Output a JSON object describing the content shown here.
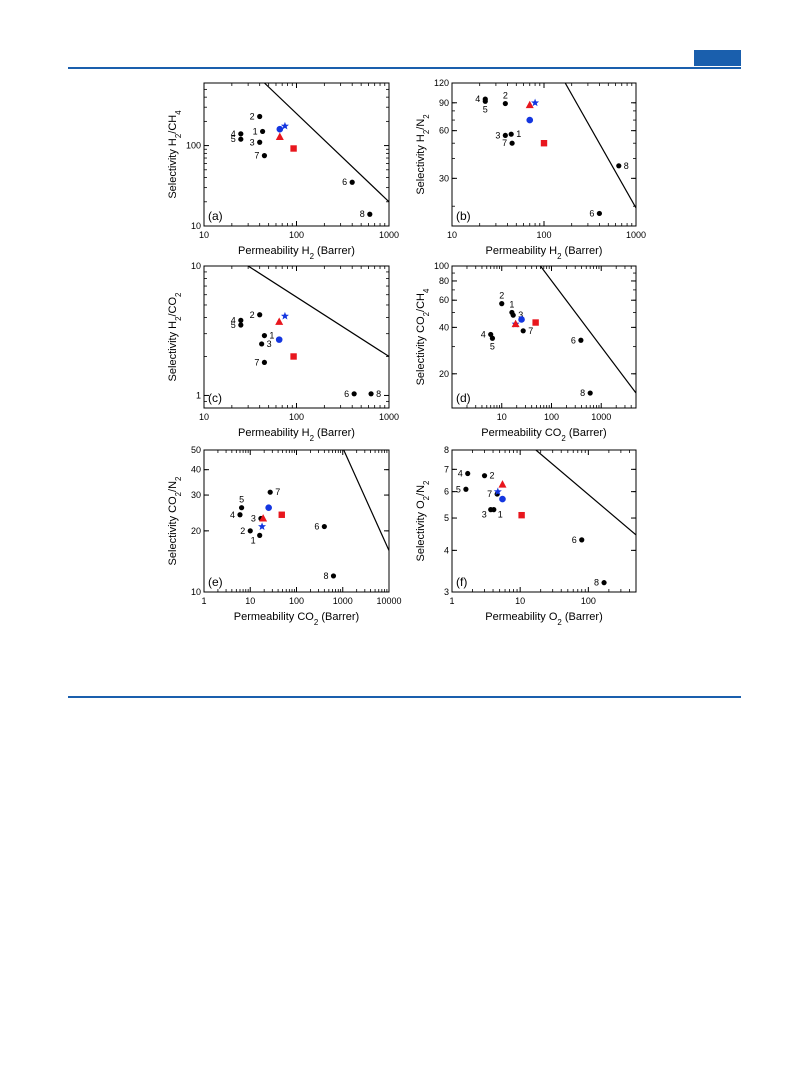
{
  "colors": {
    "page_accent": "#1a5fad",
    "red": "#e8161d",
    "blue": "#1436e0",
    "black": "#000000"
  },
  "chart_data": [
    {
      "type": "scatter",
      "panel_label": "(a)",
      "xlabel": "Permeability H₂ (Barrer)",
      "ylabel": "Selectivity H₂/CH₄",
      "xscale": "log",
      "yscale": "log",
      "xlim": [
        10,
        1000
      ],
      "ylim": [
        10,
        600
      ],
      "xticks": [
        {
          "v": 10,
          "label": "10"
        },
        {
          "v": 100,
          "label": "100"
        },
        {
          "v": 1000,
          "label": "1000"
        }
      ],
      "yticks": [
        {
          "v": 10,
          "label": "10"
        },
        {
          "v": 100,
          "label": "100"
        }
      ],
      "points": [
        {
          "label": "1",
          "x": 43,
          "y": 150,
          "color": "black",
          "marker": "circle",
          "label_pos": "left"
        },
        {
          "label": "2",
          "x": 40,
          "y": 230,
          "color": "black",
          "marker": "circle",
          "label_pos": "left"
        },
        {
          "label": "3",
          "x": 40,
          "y": 110,
          "color": "black",
          "marker": "circle",
          "label_pos": "left"
        },
        {
          "label": "4",
          "x": 25,
          "y": 140,
          "color": "black",
          "marker": "circle",
          "label_pos": "left"
        },
        {
          "label": "5",
          "x": 25,
          "y": 120,
          "color": "black",
          "marker": "circle",
          "label_pos": "left"
        },
        {
          "label": "6",
          "x": 400,
          "y": 35,
          "color": "black",
          "marker": "circle",
          "label_pos": "left"
        },
        {
          "label": "7",
          "x": 45,
          "y": 75,
          "color": "black",
          "marker": "circle",
          "label_pos": "left"
        },
        {
          "label": "8",
          "x": 620,
          "y": 14,
          "color": "black",
          "marker": "circle",
          "label_pos": "left"
        },
        {
          "label": "",
          "x": 66,
          "y": 160,
          "color": "blue",
          "marker": "circle",
          "label_pos": "none"
        },
        {
          "label": "",
          "x": 75,
          "y": 175,
          "color": "blue",
          "marker": "star",
          "label_pos": "none"
        },
        {
          "label": "",
          "x": 66,
          "y": 128,
          "color": "red",
          "marker": "triangle",
          "label_pos": "none"
        },
        {
          "label": "",
          "x": 93,
          "y": 92,
          "color": "red",
          "marker": "square",
          "label_pos": "none"
        }
      ],
      "upper_bound": [
        [
          45,
          600
        ],
        [
          1000,
          20
        ]
      ]
    },
    {
      "type": "scatter",
      "panel_label": "(b)",
      "xlabel": "Permeability H₂ (Barrer)",
      "ylabel": "Selectivity H₂/N₂",
      "xscale": "log",
      "yscale": "log",
      "xlim": [
        10,
        1000
      ],
      "ylim": [
        15,
        120
      ],
      "xticks": [
        {
          "v": 10,
          "label": "10"
        },
        {
          "v": 100,
          "label": "100"
        },
        {
          "v": 1000,
          "label": "1000"
        }
      ],
      "yticks": [
        {
          "v": 30,
          "label": "30"
        },
        {
          "v": 60,
          "label": "60"
        },
        {
          "v": 90,
          "label": "90"
        },
        {
          "v": 120,
          "label": "120"
        }
      ],
      "points": [
        {
          "label": "1",
          "x": 44,
          "y": 57,
          "color": "black",
          "marker": "circle",
          "label_pos": "right"
        },
        {
          "label": "2",
          "x": 38,
          "y": 89,
          "color": "black",
          "marker": "circle",
          "label_pos": "above"
        },
        {
          "label": "3",
          "x": 38,
          "y": 56,
          "color": "black",
          "marker": "circle",
          "label_pos": "left"
        },
        {
          "label": "4",
          "x": 23,
          "y": 95,
          "color": "black",
          "marker": "circle",
          "label_pos": "left"
        },
        {
          "label": "5",
          "x": 23,
          "y": 92,
          "color": "black",
          "marker": "circle",
          "label_pos": "below"
        },
        {
          "label": "6",
          "x": 400,
          "y": 18,
          "color": "black",
          "marker": "circle",
          "label_pos": "left"
        },
        {
          "label": "7",
          "x": 45,
          "y": 50,
          "color": "black",
          "marker": "circle",
          "label_pos": "left"
        },
        {
          "label": "8",
          "x": 650,
          "y": 36,
          "color": "black",
          "marker": "circle",
          "label_pos": "right"
        },
        {
          "label": "",
          "x": 70,
          "y": 70,
          "color": "blue",
          "marker": "circle",
          "label_pos": "none"
        },
        {
          "label": "",
          "x": 80,
          "y": 90,
          "color": "blue",
          "marker": "star",
          "label_pos": "none"
        },
        {
          "label": "",
          "x": 70,
          "y": 87,
          "color": "red",
          "marker": "triangle",
          "label_pos": "none"
        },
        {
          "label": "",
          "x": 100,
          "y": 50,
          "color": "red",
          "marker": "square",
          "label_pos": "none"
        }
      ],
      "upper_bound": [
        [
          170,
          120
        ],
        [
          1000,
          19.5
        ]
      ]
    },
    {
      "type": "scatter",
      "panel_label": "(c)",
      "xlabel": "Permeability H₂ (Barrer)",
      "ylabel": "Selectivity H₂/CO₂",
      "xscale": "log",
      "yscale": "log",
      "xlim": [
        10,
        1000
      ],
      "ylim": [
        0.8,
        10
      ],
      "xticks": [
        {
          "v": 10,
          "label": "10"
        },
        {
          "v": 100,
          "label": "100"
        },
        {
          "v": 1000,
          "label": "1000"
        }
      ],
      "yticks": [
        {
          "v": 1,
          "label": "1"
        },
        {
          "v": 10,
          "label": "10"
        }
      ],
      "points": [
        {
          "label": "1",
          "x": 45,
          "y": 2.9,
          "color": "black",
          "marker": "circle",
          "label_pos": "right"
        },
        {
          "label": "2",
          "x": 40,
          "y": 4.2,
          "color": "black",
          "marker": "circle",
          "label_pos": "left"
        },
        {
          "label": "3",
          "x": 42,
          "y": 2.5,
          "color": "black",
          "marker": "circle",
          "label_pos": "right"
        },
        {
          "label": "4",
          "x": 25,
          "y": 3.8,
          "color": "black",
          "marker": "circle",
          "label_pos": "left"
        },
        {
          "label": "5",
          "x": 25,
          "y": 3.5,
          "color": "black",
          "marker": "circle",
          "label_pos": "left"
        },
        {
          "label": "6",
          "x": 420,
          "y": 1.03,
          "color": "black",
          "marker": "circle",
          "label_pos": "left"
        },
        {
          "label": "7",
          "x": 45,
          "y": 1.8,
          "color": "black",
          "marker": "circle",
          "label_pos": "left"
        },
        {
          "label": "8",
          "x": 640,
          "y": 1.03,
          "color": "black",
          "marker": "circle",
          "label_pos": "right"
        },
        {
          "label": "",
          "x": 65,
          "y": 2.7,
          "color": "blue",
          "marker": "circle",
          "label_pos": "none"
        },
        {
          "label": "",
          "x": 75,
          "y": 4.1,
          "color": "blue",
          "marker": "star",
          "label_pos": "none"
        },
        {
          "label": "",
          "x": 65,
          "y": 3.7,
          "color": "red",
          "marker": "triangle",
          "label_pos": "none"
        },
        {
          "label": "",
          "x": 93,
          "y": 2.0,
          "color": "red",
          "marker": "square",
          "label_pos": "none"
        }
      ],
      "upper_bound": [
        [
          30,
          10
        ],
        [
          1000,
          2
        ]
      ]
    },
    {
      "type": "scatter",
      "panel_label": "(d)",
      "xlabel": "Permeability CO₂ (Barrer)",
      "ylabel": "Selectivity CO₂/CH₄",
      "xscale": "log",
      "yscale": "log",
      "xlim": [
        1,
        5000
      ],
      "ylim": [
        12,
        100
      ],
      "xticks": [
        {
          "v": 10,
          "label": "10"
        },
        {
          "v": 100,
          "label": "100"
        },
        {
          "v": 1000,
          "label": "1000"
        }
      ],
      "yticks": [
        {
          "v": 20,
          "label": "20"
        },
        {
          "v": 40,
          "label": "40"
        },
        {
          "v": 60,
          "label": "60"
        },
        {
          "v": 80,
          "label": "80"
        },
        {
          "v": 100,
          "label": "100"
        }
      ],
      "points": [
        {
          "label": "1",
          "x": 16,
          "y": 50,
          "color": "black",
          "marker": "circle",
          "label_pos": "above"
        },
        {
          "label": "2",
          "x": 10,
          "y": 57,
          "color": "black",
          "marker": "circle",
          "label_pos": "above"
        },
        {
          "label": "3",
          "x": 17,
          "y": 48,
          "color": "black",
          "marker": "circle",
          "label_pos": "right"
        },
        {
          "label": "4",
          "x": 6,
          "y": 36,
          "color": "black",
          "marker": "circle",
          "label_pos": "left"
        },
        {
          "label": "5",
          "x": 6.5,
          "y": 34,
          "color": "black",
          "marker": "circle",
          "label_pos": "below"
        },
        {
          "label": "6",
          "x": 390,
          "y": 33,
          "color": "black",
          "marker": "circle",
          "label_pos": "left"
        },
        {
          "label": "7",
          "x": 27,
          "y": 38,
          "color": "black",
          "marker": "circle",
          "label_pos": "right"
        },
        {
          "label": "8",
          "x": 600,
          "y": 15,
          "color": "black",
          "marker": "circle",
          "label_pos": "left"
        },
        {
          "label": "",
          "x": 25,
          "y": 45,
          "color": "blue",
          "marker": "circle",
          "label_pos": "none"
        },
        {
          "label": "",
          "x": 19,
          "y": 42,
          "color": "blue",
          "marker": "star",
          "label_pos": "none"
        },
        {
          "label": "",
          "x": 19,
          "y": 42,
          "color": "red",
          "marker": "triangle",
          "label_pos": "none"
        },
        {
          "label": "",
          "x": 48,
          "y": 43,
          "color": "red",
          "marker": "square",
          "label_pos": "none"
        }
      ],
      "upper_bound": [
        [
          60,
          100
        ],
        [
          5000,
          15
        ]
      ]
    },
    {
      "type": "scatter",
      "panel_label": "(e)",
      "xlabel": "Permeability CO₂ (Barrer)",
      "ylabel": "Selectivity CO₂/N₂",
      "xscale": "log",
      "yscale": "log",
      "xlim": [
        1,
        10000
      ],
      "ylim": [
        10,
        50
      ],
      "xticks": [
        {
          "v": 1,
          "label": "1"
        },
        {
          "v": 10,
          "label": "10"
        },
        {
          "v": 100,
          "label": "100"
        },
        {
          "v": 1000,
          "label": "1000"
        },
        {
          "v": 10000,
          "label": "10000"
        }
      ],
      "yticks": [
        {
          "v": 10,
          "label": "10"
        },
        {
          "v": 20,
          "label": "20"
        },
        {
          "v": 30,
          "label": "30"
        },
        {
          "v": 40,
          "label": "40"
        },
        {
          "v": 50,
          "label": "50"
        }
      ],
      "points": [
        {
          "label": "1",
          "x": 16,
          "y": 19,
          "color": "black",
          "marker": "circle",
          "label_pos": "left-below"
        },
        {
          "label": "2",
          "x": 10,
          "y": 20,
          "color": "black",
          "marker": "circle",
          "label_pos": "left"
        },
        {
          "label": "3",
          "x": 17,
          "y": 23,
          "color": "black",
          "marker": "circle",
          "label_pos": "left"
        },
        {
          "label": "4",
          "x": 6,
          "y": 24,
          "color": "black",
          "marker": "circle",
          "label_pos": "left"
        },
        {
          "label": "5",
          "x": 6.5,
          "y": 26,
          "color": "black",
          "marker": "circle",
          "label_pos": "above"
        },
        {
          "label": "6",
          "x": 400,
          "y": 21,
          "color": "black",
          "marker": "circle",
          "label_pos": "left"
        },
        {
          "label": "7",
          "x": 27,
          "y": 31,
          "color": "black",
          "marker": "circle",
          "label_pos": "right"
        },
        {
          "label": "8",
          "x": 630,
          "y": 12,
          "color": "black",
          "marker": "circle",
          "label_pos": "left"
        },
        {
          "label": "",
          "x": 25,
          "y": 26,
          "color": "blue",
          "marker": "circle",
          "label_pos": "none"
        },
        {
          "label": "",
          "x": 18,
          "y": 21,
          "color": "blue",
          "marker": "star",
          "label_pos": "none"
        },
        {
          "label": "",
          "x": 19,
          "y": 23,
          "color": "red",
          "marker": "triangle",
          "label_pos": "none"
        },
        {
          "label": "",
          "x": 48,
          "y": 24,
          "color": "red",
          "marker": "square",
          "label_pos": "none"
        }
      ],
      "upper_bound": [
        [
          1050,
          50
        ],
        [
          10000,
          16
        ]
      ]
    },
    {
      "type": "scatter",
      "panel_label": "(f)",
      "xlabel": "Permeability O₂ (Barrer)",
      "ylabel": "Selectivity O₂/N₂",
      "xscale": "log",
      "yscale": "log",
      "xlim": [
        1,
        500
      ],
      "ylim": [
        3,
        8
      ],
      "xticks": [
        {
          "v": 1,
          "label": "1"
        },
        {
          "v": 10,
          "label": "10"
        },
        {
          "v": 100,
          "label": "100"
        }
      ],
      "yticks": [
        {
          "v": 3,
          "label": "3"
        },
        {
          "v": 4,
          "label": "4"
        },
        {
          "v": 5,
          "label": "5"
        },
        {
          "v": 6,
          "label": "6"
        },
        {
          "v": 7,
          "label": "7"
        },
        {
          "v": 8,
          "label": "8"
        }
      ],
      "points": [
        {
          "label": "1",
          "x": 4.1,
          "y": 5.3,
          "color": "black",
          "marker": "circle",
          "label_pos": "right-below"
        },
        {
          "label": "2",
          "x": 3.0,
          "y": 6.7,
          "color": "black",
          "marker": "circle",
          "label_pos": "right"
        },
        {
          "label": "3",
          "x": 3.7,
          "y": 5.3,
          "color": "black",
          "marker": "circle",
          "label_pos": "left-below"
        },
        {
          "label": "4",
          "x": 1.7,
          "y": 6.8,
          "color": "black",
          "marker": "circle",
          "label_pos": "left"
        },
        {
          "label": "5",
          "x": 1.6,
          "y": 6.1,
          "color": "black",
          "marker": "circle",
          "label_pos": "left"
        },
        {
          "label": "6",
          "x": 80,
          "y": 4.3,
          "color": "black",
          "marker": "circle",
          "label_pos": "left"
        },
        {
          "label": "7",
          "x": 4.6,
          "y": 5.9,
          "color": "black",
          "marker": "circle",
          "label_pos": "left"
        },
        {
          "label": "8",
          "x": 170,
          "y": 3.2,
          "color": "black",
          "marker": "circle",
          "label_pos": "left"
        },
        {
          "label": "",
          "x": 5.5,
          "y": 5.7,
          "color": "blue",
          "marker": "circle",
          "label_pos": "none"
        },
        {
          "label": "",
          "x": 4.7,
          "y": 6.0,
          "color": "blue",
          "marker": "star",
          "label_pos": "none"
        },
        {
          "label": "",
          "x": 5.5,
          "y": 6.3,
          "color": "red",
          "marker": "triangle",
          "label_pos": "none"
        },
        {
          "label": "",
          "x": 10.5,
          "y": 5.1,
          "color": "red",
          "marker": "square",
          "label_pos": "none"
        }
      ],
      "upper_bound": [
        [
          17,
          8
        ],
        [
          500,
          4.45
        ]
      ]
    }
  ]
}
